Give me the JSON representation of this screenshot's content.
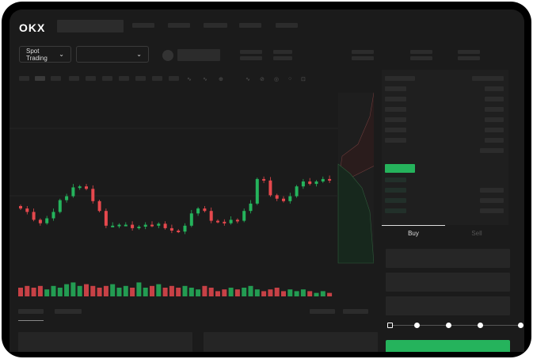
{
  "header": {
    "logo": "OKX",
    "nav_items": 4
  },
  "toolbar": {
    "market_select": "Spot Trading",
    "pair_select": ""
  },
  "trade": {
    "tabs": [
      "Buy",
      "Sell"
    ],
    "active_tab": "Buy",
    "leverage_steps": 5,
    "leverage_selected": 0
  },
  "colors": {
    "up": "#25b35c",
    "down": "#e5484d",
    "bg": "#1b1b1b",
    "accent_buy": "#25b35c"
  },
  "icons": [
    "chevron-down-icon",
    "indicator-icon",
    "draw-icon",
    "orderbook-both-icon",
    "orderbook-bids-icon",
    "orderbook-asks-icon"
  ],
  "chart_data": {
    "type": "candlestick",
    "closes": [
      95,
      88,
      72,
      65,
      75,
      88,
      112,
      120,
      138,
      140,
      135,
      110,
      90,
      60,
      60,
      62,
      62,
      55,
      58,
      62,
      60,
      64,
      55,
      50,
      48,
      60,
      85,
      95,
      90,
      70,
      68,
      65,
      72,
      70,
      90,
      105,
      155,
      152,
      122,
      115,
      110,
      120,
      140,
      150,
      145,
      150,
      155,
      152
    ],
    "volumes": [
      5,
      6,
      5,
      6,
      4,
      6,
      5,
      7,
      8,
      6,
      7,
      6,
      5,
      6,
      7,
      5,
      6,
      5,
      8,
      5,
      6,
      7,
      5,
      6,
      5,
      6,
      5,
      4,
      6,
      5,
      3,
      4,
      5,
      4,
      5,
      6,
      4,
      3,
      4,
      5,
      3,
      4,
      3,
      4,
      3,
      2,
      3,
      2
    ]
  }
}
